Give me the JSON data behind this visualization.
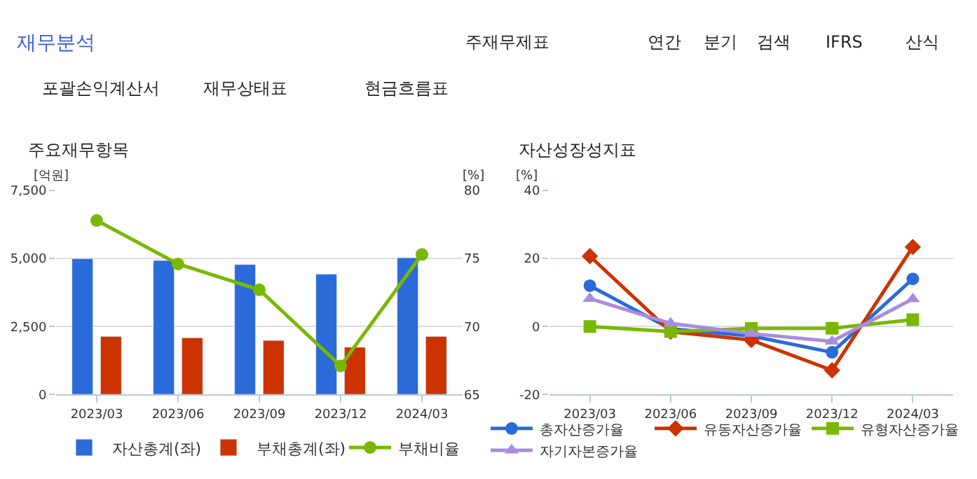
{
  "chart_data": [
    {
      "type": "other",
      "title": "재무분석",
      "annotations": [
        "주재무제표",
        "연간",
        "분기",
        "검색",
        "IFRS",
        "산식",
        "포괄손익계산서",
        "재무상태표",
        "현금흐름표"
      ]
    },
    {
      "type": "bar",
      "title": "주요재무항목",
      "ylabel": "[억원]",
      "y2label": "[%]",
      "categories": [
        "2023/03",
        "2023/06",
        "2023/09",
        "2023/12",
        "2024/03"
      ],
      "series": [
        {
          "name": "자산총계(좌)",
          "color": "#2a6bd9",
          "values": [
            5000,
            4930,
            4780,
            4430,
            5030
          ]
        },
        {
          "name": "부채총계(좌)",
          "color": "#cc3300",
          "values": [
            2140,
            2090,
            1990,
            1740,
            2140
          ]
        },
        {
          "name": "부채비율",
          "type": "line",
          "axis": "y2",
          "color": "#7ab800",
          "marker": "circle",
          "values": [
            77.8,
            74.6,
            72.7,
            67.1,
            75.3
          ]
        }
      ],
      "ylim": [
        0,
        7500
      ],
      "yticks": [
        0,
        {
          "value": 2500,
          "label": "2,500"
        },
        {
          "value": 5000,
          "label": "5,000"
        },
        {
          "value": 7500,
          "label": "7,500"
        }
      ],
      "y2lim": [
        65,
        80
      ],
      "y2ticks": [
        65,
        70,
        75,
        80
      ],
      "grid": "y",
      "legend": "bottom"
    },
    {
      "type": "line",
      "title": "자산성장성지표",
      "ylabel": "[%]",
      "categories": [
        "2023/03",
        "2023/06",
        "2023/09",
        "2023/12",
        "2024/03"
      ],
      "series": [
        {
          "name": "총자산증가율",
          "color": "#2a6bd9",
          "marker": "circle",
          "values": [
            12,
            -0.7,
            -2.8,
            -7.6,
            14
          ]
        },
        {
          "name": "유동자산증가율",
          "color": "#cc3300",
          "marker": "diamond",
          "values": [
            20.7,
            -1.5,
            -4,
            -12.9,
            23.4
          ]
        },
        {
          "name": "유형자산증가율",
          "color": "#7ab800",
          "marker": "square",
          "values": [
            0,
            -1.5,
            -0.6,
            -0.5,
            2
          ]
        },
        {
          "name": "자기자본증가율",
          "color": "#a98be0",
          "marker": "triangle",
          "values": [
            8.2,
            0.9,
            -2.1,
            -4.4,
            8.1
          ]
        }
      ],
      "ylim": [
        -20,
        40
      ],
      "yticks": [
        -20,
        0,
        20,
        40
      ],
      "grid": "y",
      "legend": "bottom"
    }
  ]
}
